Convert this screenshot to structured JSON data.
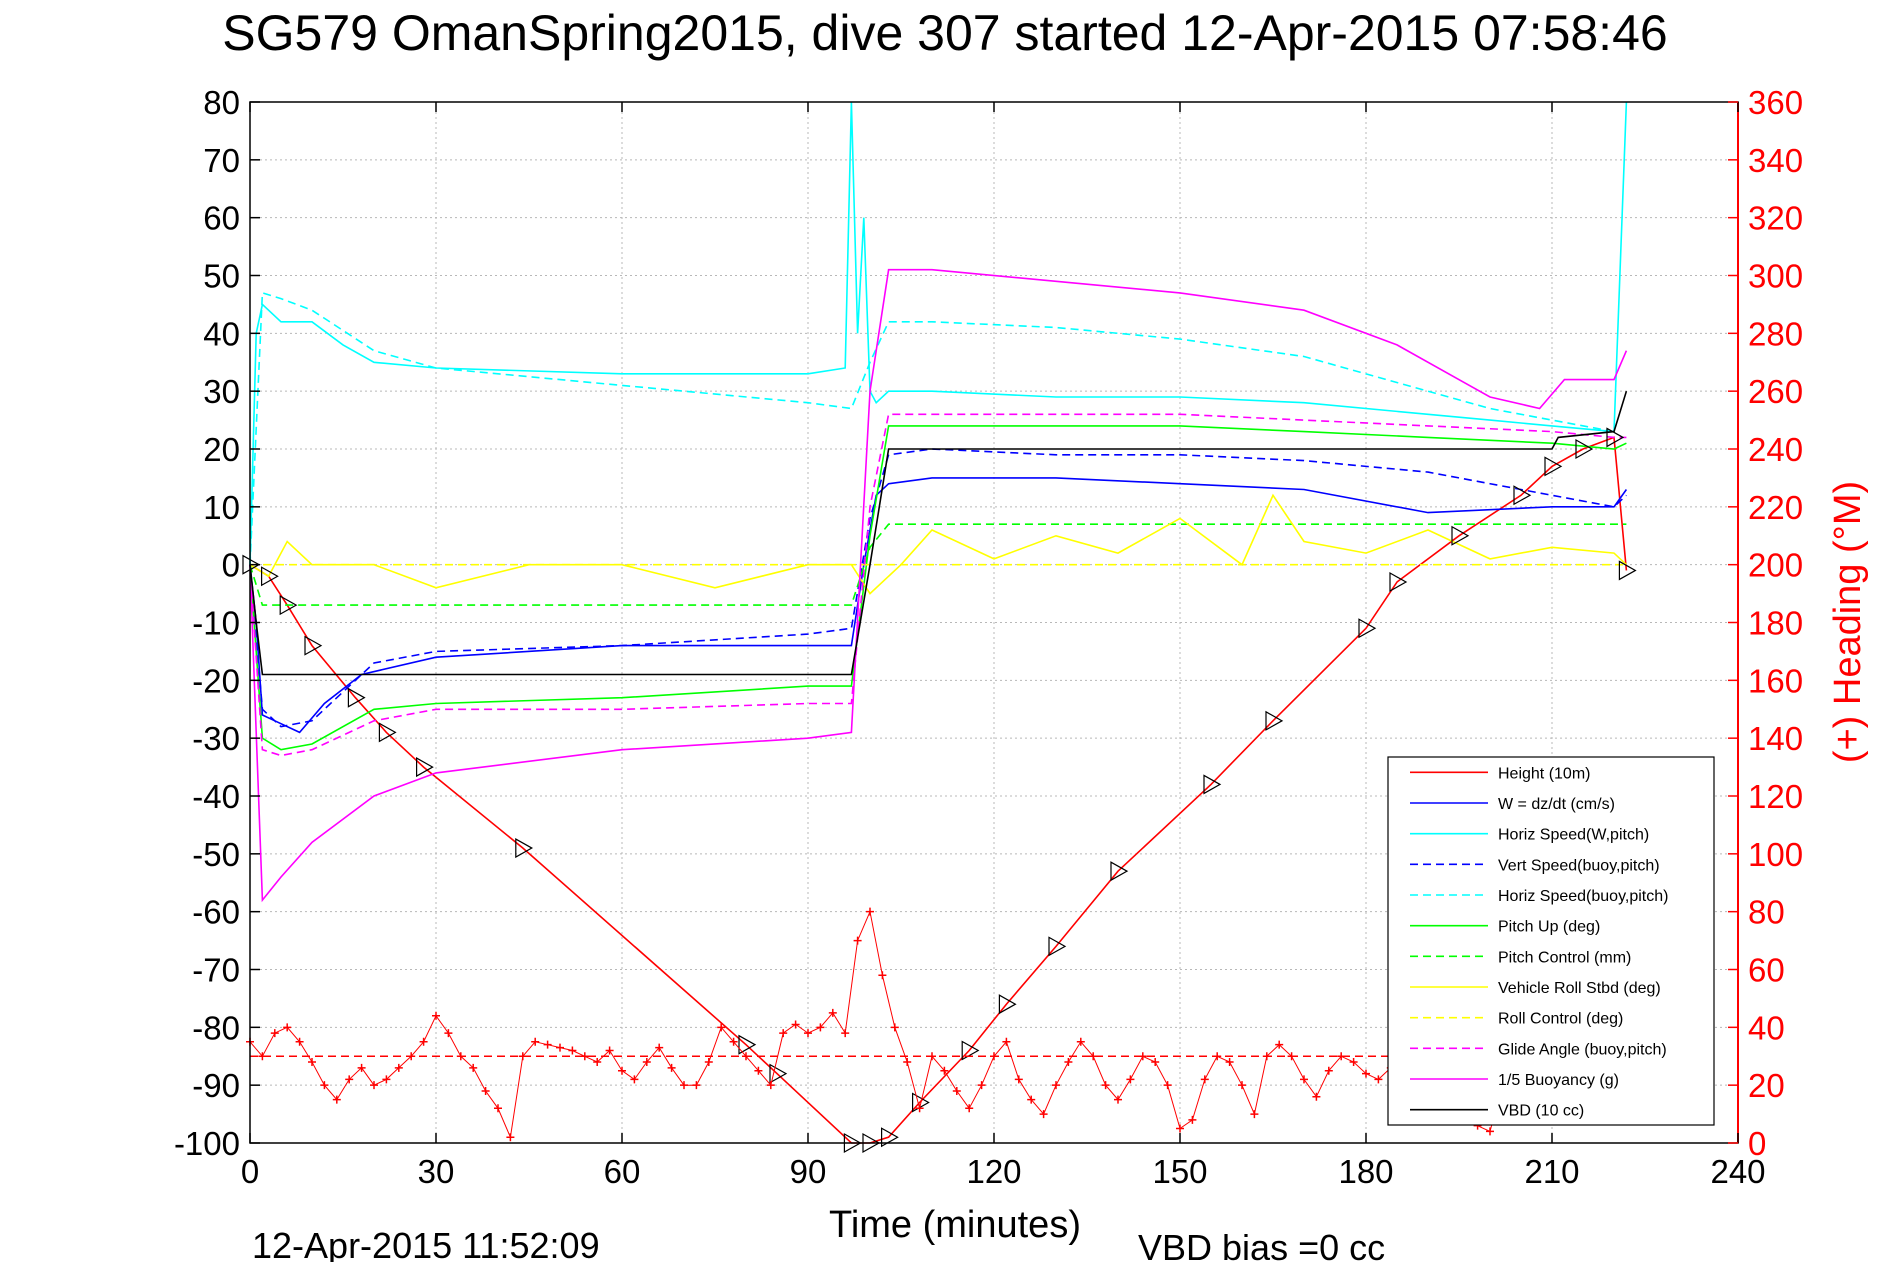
{
  "chart_data": {
    "type": "line",
    "title": "SG579 OmanSpring2015, dive 307 started 12-Apr-2015 07:58:46",
    "xlabel": "Time (minutes)",
    "ylabel_right": "(+) Heading (°M)",
    "xlim": [
      0,
      240
    ],
    "ylim": [
      -100,
      80
    ],
    "ylim_right": [
      0,
      360
    ],
    "x_ticks": [
      "0",
      "30",
      "60",
      "90",
      "120",
      "150",
      "180",
      "210",
      "240"
    ],
    "y_ticks": [
      "80",
      "70",
      "60",
      "50",
      "40",
      "30",
      "20",
      "10",
      "0",
      "-10",
      "-20",
      "-30",
      "-40",
      "-50",
      "-60",
      "-70",
      "-80",
      "-90",
      "-100"
    ],
    "y_right_ticks": [
      "360",
      "340",
      "320",
      "300",
      "280",
      "260",
      "240",
      "220",
      "200",
      "180",
      "160",
      "140",
      "120",
      "100",
      "80",
      "60",
      "40",
      "20",
      "0"
    ],
    "grid": true,
    "legend_position": "lower-right",
    "footer_left": "12-Apr-2015 11:52:09",
    "footer_right": "VBD bias =0 cc",
    "colors": {
      "red": "#ff0000",
      "blue": "#0000ff",
      "cyan": "#00ffff",
      "green": "#00ff00",
      "yellow": "#ffff00",
      "magenta": "#ff00ff",
      "black": "#000000"
    },
    "series": [
      {
        "name": "Height (10m)",
        "color": "#ff0000",
        "dash": "solid",
        "x": [
          0,
          3,
          6,
          10,
          17,
          22,
          28,
          44,
          80,
          85,
          97,
          100,
          103,
          108,
          116,
          122,
          130,
          140,
          155,
          165,
          180,
          185,
          195,
          205,
          210,
          215,
          220,
          222
        ],
        "y": [
          0,
          -2,
          -7,
          -14,
          -23,
          -29,
          -35,
          -49,
          -83,
          -88,
          -100,
          -100,
          -99,
          -93,
          -84,
          -76,
          -66,
          -53,
          -38,
          -27,
          -11,
          -3,
          5,
          12,
          17,
          20,
          22,
          -1
        ]
      },
      {
        "name": "W = dz/dt (cm/s)",
        "color": "#0000ff",
        "dash": "solid",
        "x": [
          0,
          1,
          2,
          4,
          8,
          12,
          18,
          30,
          60,
          90,
          97,
          99,
          101,
          103,
          110,
          130,
          150,
          170,
          190,
          210,
          220,
          222
        ],
        "y": [
          0,
          -10,
          -26,
          -27,
          -29,
          -24,
          -19,
          -16,
          -14,
          -14,
          -14,
          0,
          12,
          14,
          15,
          15,
          14,
          13,
          9,
          10,
          10,
          13
        ]
      },
      {
        "name": "Horiz Speed(W,pitch)",
        "color": "#00ffff",
        "dash": "solid",
        "x": [
          0,
          1,
          2,
          5,
          10,
          15,
          20,
          30,
          60,
          90,
          96,
          97,
          98,
          99,
          100,
          101,
          103,
          110,
          130,
          150,
          170,
          190,
          200,
          210,
          220,
          222
        ],
        "y": [
          0,
          40,
          45,
          42,
          42,
          38,
          35,
          34,
          33,
          33,
          34,
          80,
          40,
          60,
          30,
          28,
          30,
          30,
          29,
          29,
          28,
          26,
          25,
          24,
          23,
          80
        ]
      },
      {
        "name": "Vert Speed(buoy,pitch)",
        "color": "#0000ff",
        "dash": "dashed",
        "x": [
          0,
          2,
          5,
          10,
          20,
          30,
          60,
          90,
          97,
          100,
          103,
          110,
          130,
          150,
          170,
          190,
          210,
          220,
          222
        ],
        "y": [
          0,
          -25,
          -28,
          -27,
          -17,
          -15,
          -14,
          -12,
          -11,
          8,
          19,
          20,
          19,
          19,
          18,
          16,
          12,
          10,
          12
        ]
      },
      {
        "name": "Horiz Speed(buoy,pitch)",
        "color": "#00ffff",
        "dash": "dashed",
        "x": [
          0,
          2,
          5,
          10,
          20,
          30,
          60,
          90,
          97,
          100,
          103,
          110,
          130,
          150,
          170,
          190,
          200,
          210,
          220
        ],
        "y": [
          0,
          47,
          46,
          44,
          37,
          34,
          31,
          28,
          27,
          35,
          42,
          42,
          41,
          39,
          36,
          30,
          27,
          25,
          23
        ]
      },
      {
        "name": "Pitch Up (deg)",
        "color": "#00ff00",
        "dash": "solid",
        "x": [
          0,
          2,
          5,
          10,
          20,
          30,
          60,
          90,
          97,
          100,
          103,
          110,
          130,
          150,
          170,
          190,
          210,
          220,
          222
        ],
        "y": [
          0,
          -30,
          -32,
          -31,
          -25,
          -24,
          -23,
          -21,
          -21,
          5,
          24,
          24,
          24,
          24,
          23,
          22,
          21,
          20,
          21
        ]
      },
      {
        "name": "Pitch Control (mm)",
        "color": "#00ff00",
        "dash": "dashed",
        "x": [
          0,
          2,
          5,
          97,
          100,
          103,
          222
        ],
        "y": [
          0,
          -7,
          -7,
          -7,
          3,
          7,
          7
        ]
      },
      {
        "name": "Vehicle Roll Stbd (deg)",
        "color": "#ffff00",
        "dash": "solid",
        "x": [
          0,
          3,
          6,
          10,
          20,
          30,
          45,
          60,
          75,
          90,
          97,
          100,
          105,
          110,
          120,
          130,
          140,
          150,
          160,
          165,
          170,
          180,
          190,
          200,
          210,
          220,
          222
        ],
        "y": [
          0,
          -2,
          4,
          0,
          0,
          -4,
          0,
          0,
          -4,
          0,
          0,
          -5,
          0,
          6,
          1,
          5,
          2,
          8,
          0,
          12,
          4,
          2,
          6,
          1,
          3,
          2,
          0
        ]
      },
      {
        "name": "Roll Control (deg)",
        "color": "#ffff00",
        "dash": "dashed",
        "x": [
          0,
          222
        ],
        "y": [
          0,
          0
        ]
      },
      {
        "name": "Glide Angle (buoy,pitch)",
        "color": "#ff00ff",
        "dash": "dashed",
        "x": [
          0,
          2,
          5,
          10,
          20,
          30,
          60,
          90,
          97,
          100,
          103,
          110,
          130,
          150,
          170,
          190,
          210,
          220,
          222
        ],
        "y": [
          0,
          -32,
          -33,
          -32,
          -27,
          -25,
          -25,
          -24,
          -24,
          10,
          26,
          26,
          26,
          26,
          25,
          24,
          23,
          22,
          22
        ]
      },
      {
        "name": "1/5 Buoyancy (g)",
        "color": "#ff00ff",
        "dash": "solid",
        "x": [
          0,
          2,
          5,
          10,
          20,
          30,
          60,
          90,
          97,
          100,
          103,
          110,
          130,
          150,
          170,
          185,
          200,
          208,
          212,
          220,
          222
        ],
        "y": [
          0,
          -58,
          -54,
          -48,
          -40,
          -36,
          -32,
          -30,
          -29,
          30,
          51,
          51,
          49,
          47,
          44,
          38,
          29,
          27,
          32,
          32,
          37
        ]
      },
      {
        "name": "VBD (10 cc)",
        "color": "#000000",
        "dash": "solid",
        "x": [
          0,
          1,
          2,
          97,
          100,
          103,
          210,
          211,
          220,
          222
        ],
        "y": [
          0,
          -10,
          -19,
          -19,
          0,
          20,
          20,
          22,
          23,
          30
        ]
      }
    ],
    "heading_data": {
      "name": "Heading (+)",
      "color": "#ff0000",
      "mean": 30,
      "x": [
        0,
        2,
        4,
        6,
        8,
        10,
        12,
        14,
        16,
        18,
        20,
        22,
        24,
        26,
        28,
        30,
        32,
        34,
        36,
        38,
        40,
        42,
        44,
        46,
        48,
        50,
        52,
        54,
        56,
        58,
        60,
        62,
        64,
        66,
        68,
        70,
        72,
        74,
        76,
        78,
        80,
        82,
        84,
        86,
        88,
        90,
        92,
        94,
        96,
        98,
        100,
        102,
        104,
        106,
        108,
        110,
        112,
        114,
        116,
        118,
        120,
        122,
        124,
        126,
        128,
        130,
        132,
        134,
        136,
        138,
        140,
        142,
        144,
        146,
        148,
        150,
        152,
        154,
        156,
        158,
        160,
        162,
        164,
        166,
        168,
        170,
        172,
        174,
        176,
        178,
        180,
        182,
        184,
        186,
        188,
        190,
        192,
        194,
        196,
        198,
        200,
        202,
        204,
        206,
        208,
        210,
        212,
        214,
        216,
        218,
        220,
        222
      ],
      "y": [
        35,
        30,
        38,
        40,
        35,
        28,
        20,
        15,
        22,
        26,
        20,
        22,
        26,
        30,
        35,
        44,
        38,
        30,
        26,
        18,
        12,
        2,
        30,
        35,
        34,
        33,
        32,
        30,
        28,
        32,
        25,
        22,
        28,
        33,
        26,
        20,
        20,
        28,
        40,
        35,
        30,
        25,
        20,
        38,
        41,
        38,
        40,
        45,
        38,
        70,
        80,
        58,
        40,
        28,
        12,
        30,
        25,
        18,
        12,
        20,
        30,
        35,
        22,
        15,
        10,
        20,
        28,
        35,
        30,
        20,
        15,
        22,
        30,
        28,
        20,
        5,
        8,
        22,
        30,
        28,
        20,
        10,
        30,
        34,
        30,
        22,
        16,
        25,
        30,
        28,
        24,
        22,
        26,
        30,
        18,
        30,
        10,
        22,
        14,
        6,
        4,
        20,
        35,
        30,
        22,
        28,
        20,
        26,
        30,
        28,
        24,
        20
      ]
    }
  }
}
